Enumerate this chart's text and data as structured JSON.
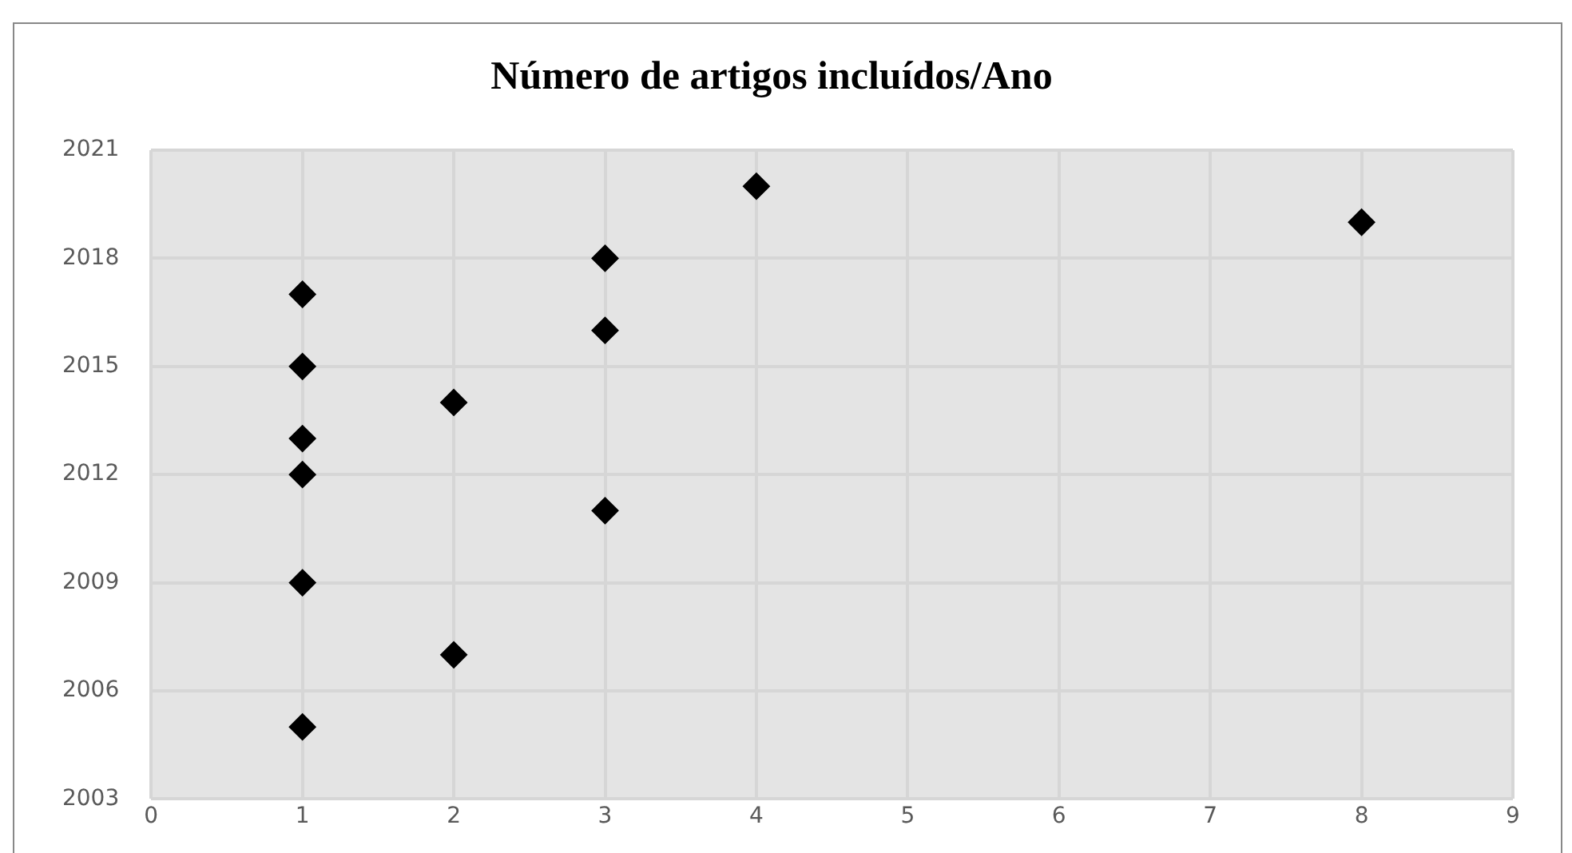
{
  "chart_data": {
    "type": "scatter",
    "title": "Número de artigos incluídos/Ano",
    "x": [
      1,
      1,
      1,
      1,
      1,
      1,
      2,
      2,
      3,
      3,
      3,
      4,
      8
    ],
    "values": [
      2005,
      2009,
      2012,
      2013,
      2015,
      2017,
      2007,
      2014,
      2011,
      2016,
      2018,
      2020,
      2019
    ],
    "color": "#000000",
    "marker": "diamond",
    "xlim": [
      0,
      9
    ],
    "xticks": [
      0,
      1,
      2,
      3,
      4,
      5,
      6,
      7,
      8,
      9
    ],
    "ylim": [
      2003,
      2021
    ],
    "yticks": [
      2003,
      2006,
      2009,
      2012,
      2015,
      2018,
      2021
    ],
    "grid": true,
    "legend": false
  }
}
